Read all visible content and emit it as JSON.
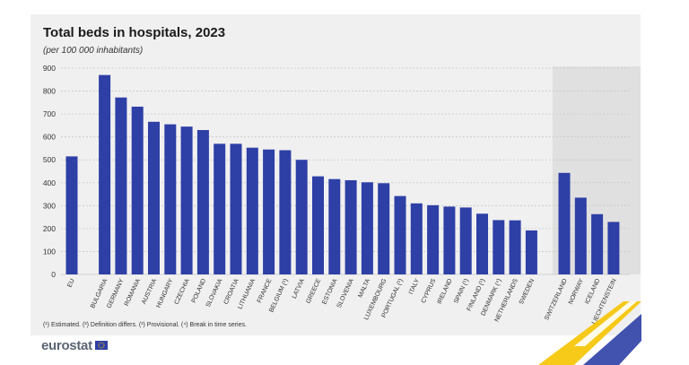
{
  "header": {
    "title": "Total beds in hospitals, 2023",
    "subtitle": "(per 100 000 inhabitants)"
  },
  "footnote": "(¹) Estimated. (²) Definition differs. (³) Provisional. (⁴) Break in time series.",
  "branding": {
    "logo_text": "eurostat",
    "flag": "eu-flag-icon"
  },
  "colors": {
    "bar": "#2e3fa6",
    "panel": "#f0f0f0",
    "shaded_region": "#e0e0e0",
    "accent_yellow": "#f6c400",
    "accent_blue": "#2e3fa6"
  },
  "chart_data": {
    "type": "bar",
    "ylim": [
      0,
      900
    ],
    "yticks": [
      0,
      100,
      200,
      300,
      400,
      500,
      600,
      700,
      800,
      900
    ],
    "grid": true,
    "categories": [
      "EU",
      "BULGARIA",
      "GERMANY",
      "ROMANIA",
      "AUSTRIA",
      "HUNGARY",
      "CZECHIA",
      "POLAND",
      "SLOVAKIA",
      "CROATIA",
      "LITHUANIA",
      "FRANCE",
      "BELGIUM (¹)",
      "LATVIA",
      "GREECE",
      "ESTONIA",
      "SLOVENIA",
      "MALTA",
      "LUXEMBOURG",
      "PORTUGAL (¹)",
      "ITALY",
      "CYPRUS",
      "IRELAND",
      "SPAIN (¹)",
      "FINLAND (¹)",
      "DENMARK (⁴)",
      "NETHERLANDS",
      "SWEDEN",
      "SWITZERLAND",
      "NORWAY",
      "ICELAND",
      "LIECHTENSTEIN"
    ],
    "values": [
      515,
      870,
      772,
      732,
      666,
      655,
      645,
      630,
      570,
      570,
      553,
      545,
      542,
      500,
      428,
      416,
      411,
      402,
      398,
      342,
      310,
      302,
      296,
      292,
      265,
      237,
      236,
      192,
      443,
      335,
      263,
      229
    ],
    "groups": [
      {
        "name": "eu",
        "count": 1
      },
      {
        "name": "member_states",
        "count": 27
      },
      {
        "name": "efta",
        "count": 4,
        "shaded": true
      }
    ]
  }
}
